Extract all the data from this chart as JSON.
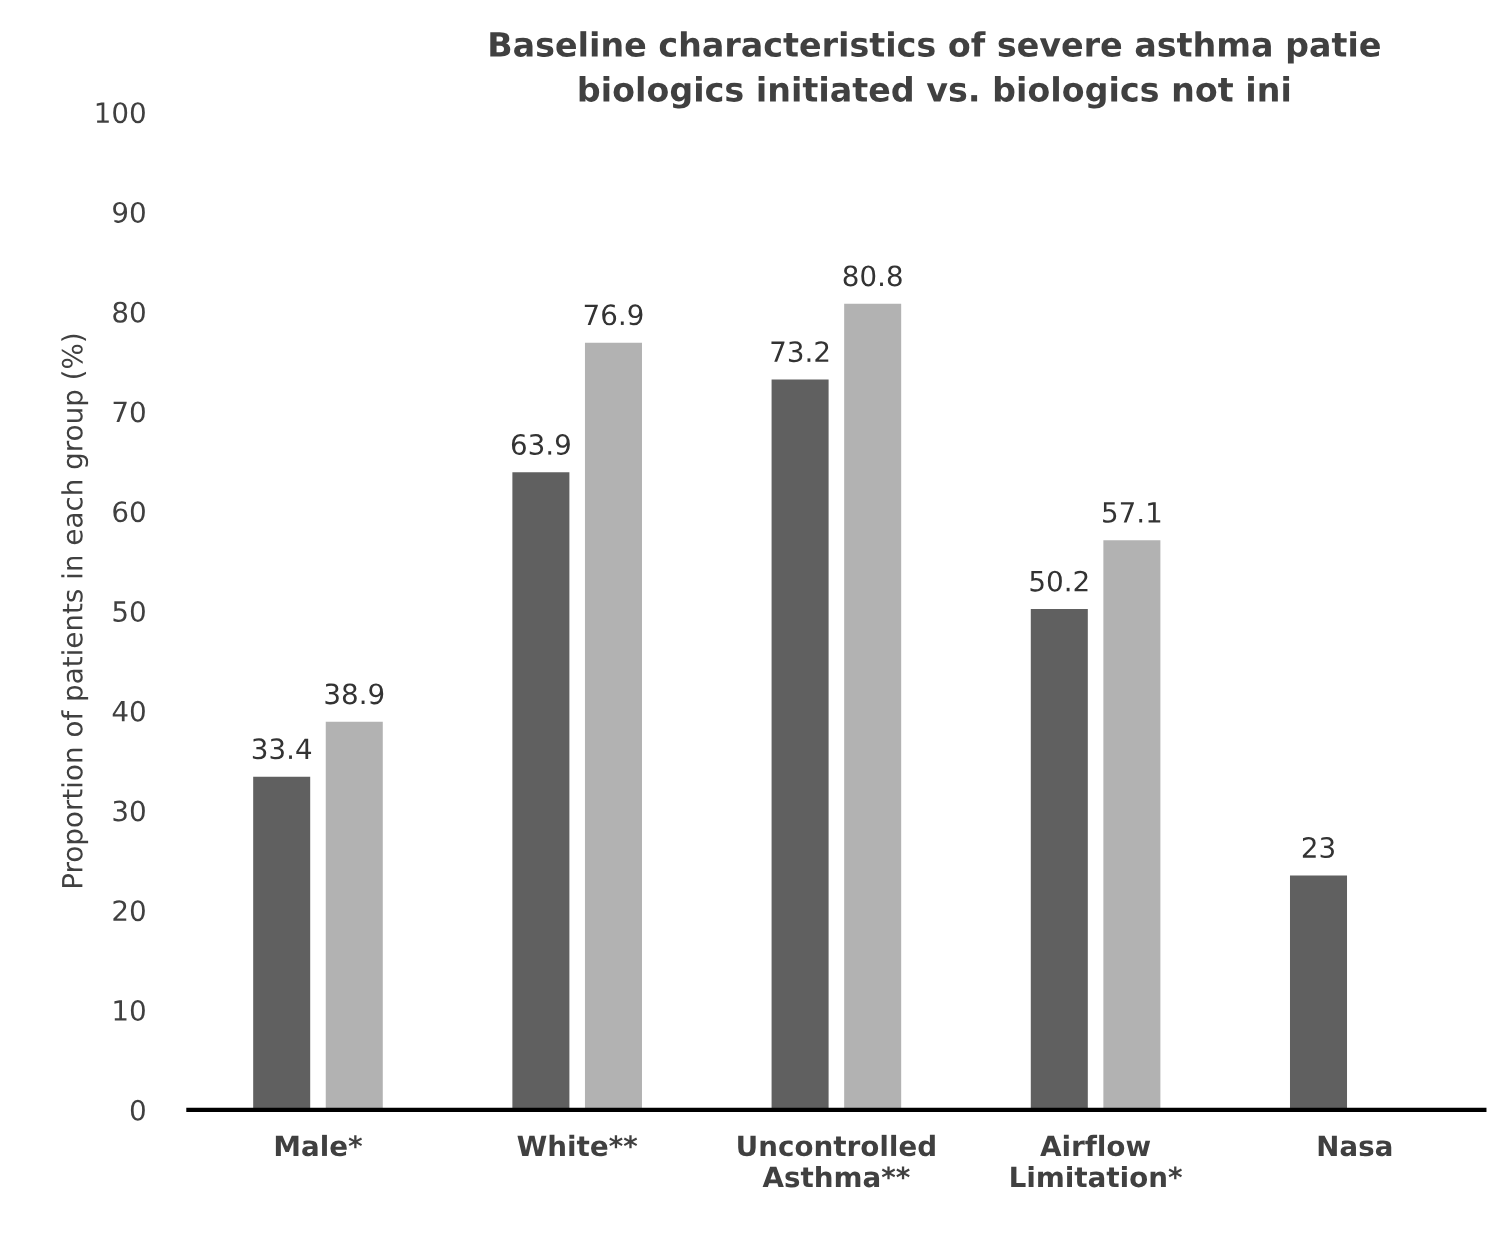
{
  "chart_data": {
    "type": "bar",
    "title": "Baseline characteristics of severe asthma patie\nbiologics initiated vs. biologics not ini",
    "ylabel": "Proportion of patients in each group (%)",
    "categories": [
      "Male*",
      "White**",
      "Uncontrolled\nAsthma**",
      "Airflow\nLimitation*",
      "Nasa"
    ],
    "series": [
      {
        "color": "#606060",
        "values": [
          33.4,
          63.9,
          73.2,
          50.2,
          23.5
        ],
        "value_labels": [
          "33.4",
          "63.9",
          "73.2",
          "50.2",
          "23"
        ]
      },
      {
        "color": "#b2b2b2",
        "values": [
          38.9,
          76.9,
          80.8,
          57.1,
          null
        ],
        "value_labels": [
          "38.9",
          "76.9",
          "80.8",
          "57.1",
          null
        ]
      }
    ],
    "ylim": [
      0,
      100
    ],
    "yticks": [
      0,
      10,
      20,
      30,
      40,
      50,
      60,
      70,
      80,
      90,
      100
    ],
    "grid": false,
    "legend": false
  }
}
